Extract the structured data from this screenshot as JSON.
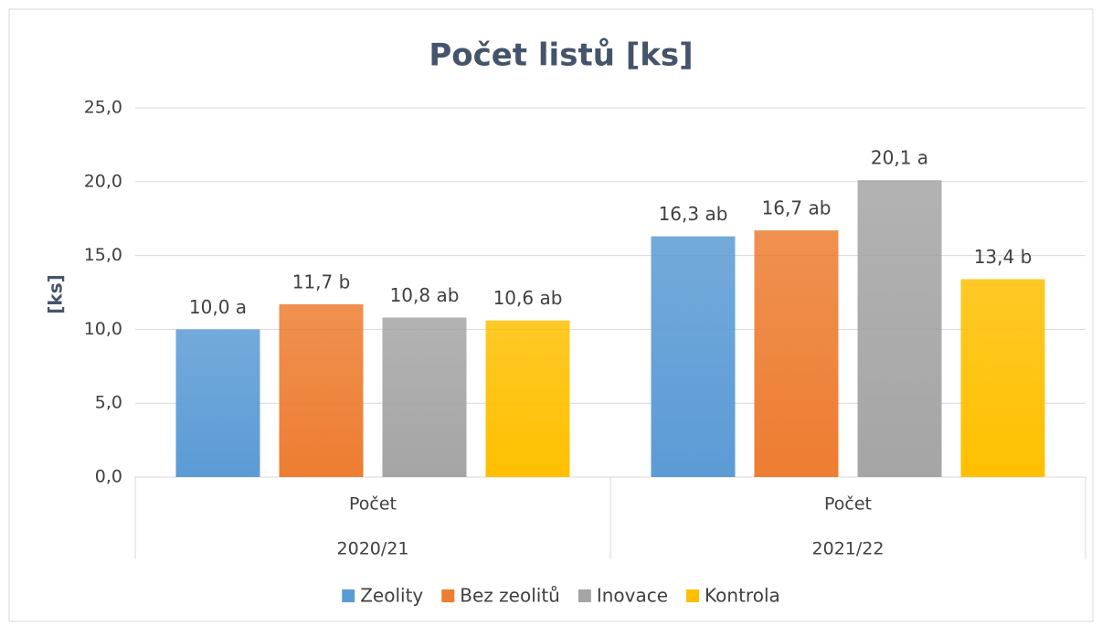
{
  "chart_data": {
    "type": "bar",
    "title": "Počet listů [ks]",
    "y_label": "[ks]",
    "categories": [
      "Počet",
      "Počet"
    ],
    "groups": [
      "2020/21",
      "2021/22"
    ],
    "series": [
      {
        "name": "Zeolity",
        "color": "#5b9bd5",
        "values": [
          10.0,
          16.3
        ],
        "value_labels": [
          "10,0 a",
          "16,3 ab"
        ]
      },
      {
        "name": "Bez zeolitů",
        "color": "#ed7d31",
        "values": [
          11.7,
          16.7
        ],
        "value_labels": [
          "11,7 b",
          "16,7 ab"
        ]
      },
      {
        "name": "Inovace",
        "color": "#a5a5a5",
        "values": [
          10.8,
          20.1
        ],
        "value_labels": [
          "10,8 ab",
          "20,1 a"
        ]
      },
      {
        "name": "Kontrola",
        "color": "#ffc000",
        "values": [
          10.6,
          13.4
        ],
        "value_labels": [
          "10,6 ab",
          "13,4 b"
        ]
      }
    ],
    "ylim": [
      0,
      25
    ],
    "yticks": [
      {
        "value": 0,
        "label": "0,0"
      },
      {
        "value": 5,
        "label": "5,0"
      },
      {
        "value": 10,
        "label": "10,0"
      },
      {
        "value": 15,
        "label": "15,0"
      },
      {
        "value": 20,
        "label": "20,0"
      },
      {
        "value": 25,
        "label": "25,0"
      }
    ],
    "grid": true,
    "legend": "bottom"
  }
}
